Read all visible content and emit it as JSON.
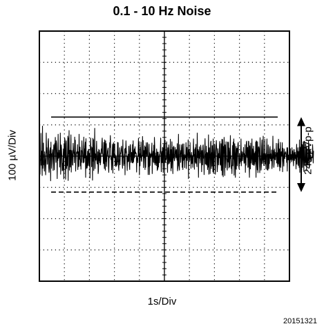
{
  "chart_data": {
    "type": "line",
    "title": "0.1 - 10 Hz Noise",
    "xlabel": "1s/Div",
    "ylabel": "100 µV/Div",
    "x_divisions": 10,
    "y_divisions": 8,
    "grid": true,
    "xlim": [
      0,
      10
    ],
    "ylim": [
      -4,
      4
    ],
    "series": [
      {
        "x_step": 0.0125,
        "values": [
          0.03,
          0.14,
          -0.58,
          -0.13,
          -0.13,
          0.73,
          -0.29,
          0.16,
          -0.3,
          -0.62,
          0.96,
          -0.39,
          0.16,
          0.42,
          -0.28,
          -0.24,
          -0.48,
          0.14,
          -0.06,
          -0.2,
          -0.6,
          -0.27,
          0.74,
          0.11,
          0.27,
          -0.26,
          -0.26,
          0.0,
          0.47,
          0.56,
          -0.36,
          -0.52,
          -0.39,
          0.15,
          0.21,
          0.27,
          -0.79,
          0.45,
          -0.39,
          -0.21,
          0.08,
          0.09,
          0.21,
          -0.16,
          -0.46,
          0.05,
          0.36,
          0.14,
          -0.44,
          0.4,
          0.22,
          0.6,
          0.02,
          -0.2,
          0.49,
          0.4,
          0.16,
          -0.72,
          0.11,
          -0.14,
          0.7,
          -0.07,
          -0.0,
          0.06,
          0.19,
          -0.35,
          0.11,
          0.74,
          -0.58,
          -0.05,
          0.36,
          0.2,
          -0.07,
          -0.47,
          -0.23,
          -0.45,
          0.03,
          0.23,
          -0.73,
          0.4,
          0.01,
          0.58,
          0.51,
          -0.39,
          -0.74,
          0.39,
          0.49,
          -0.4,
          -0.04,
          -0.31,
          0.07,
          0.64,
          -0.78,
          0.58,
          0.08,
          0.82,
          -0.45,
          -0.08,
          0.19,
          -0.35,
          0.25,
          0.68,
          -0.51,
          0.16,
          0.18,
          0.04,
          -0.28,
          -0.29,
          0.41,
          0.22,
          0.11,
          0.05,
          -0.21,
          0.61,
          0.06,
          0.51,
          -0.48,
          -0.18,
          0.05,
          0.13,
          0.14,
          0.09,
          0.37,
          -0.43,
          0.14,
          -0.17,
          -0.34,
          0.7,
          0.08,
          -0.11,
          0.29,
          -0.31,
          -0.13,
          -0.42,
          0.18,
          -0.2,
          0.49,
          0.22,
          0.14,
          -0.06,
          -0.22,
          -0.08,
          0.61,
          -0.2,
          0.23,
          -0.06,
          0.31,
          0.45,
          -0.68,
          0.56,
          -0.4,
          0.01,
          -0.33,
          -0.38,
          0.16,
          -0.31,
          -0.22,
          0.22,
          0.21,
          -0.29,
          -0.32,
          0.09,
          -0.7,
          0.21,
          0.58,
          0.2,
          0.3,
          -0.34,
          -0.13,
          0.27,
          -0.77,
          0.57,
          -0.16,
          0.53,
          -0.46,
          0.03,
          0.1,
          0.89,
          -0.4,
          0.08,
          -0.04,
          -0.13,
          0.13,
          0.48,
          -0.16,
          -0.25,
          -0.15,
          0.14,
          -0.56,
          -0.48,
          0.22,
          -0.15,
          0.19,
          -0.21,
          0.1,
          -0.28,
          -0.18,
          0.04,
          0.23,
          0.08,
          0.43,
          0.58,
          0.12,
          0.03,
          -0.02,
          -0.24,
          0.44,
          -0.07,
          -0.4,
          0.52,
          0.1,
          -0.45,
          0.49,
          -0.17,
          0.4,
          -0.33,
          -0.01,
          0.01,
          0.16,
          0.21,
          0.26,
          -0.34,
          -0.52,
          -0.01,
          -0.04,
          0.43,
          0.28,
          0.66,
          0.26,
          -0.11,
          -0.03,
          -0.44,
          -0.26,
          0.05,
          0.38,
          -0.54,
          0.1,
          0.43,
          -0.04,
          0.39,
          0.28,
          0.39,
          -0.28,
          0.04,
          -0.33,
          -0.03,
          -0.03,
          -0.32,
          -0.17,
          -0.27,
          0.44,
          -0.18,
          0.43,
          -0.31,
          -0.46,
          -0.19,
          -0.07,
          0.27,
          -0.28,
          0.1,
          0.07,
          0.15,
          0.24,
          0.32,
          0.14,
          -0.23,
          -0.39,
          0.52,
          -0.04,
          -0.0,
          -0.3,
          -0.17,
          -0.23,
          0.23,
          -0.6,
          0.25,
          0.1,
          0.49,
          0.19,
          0.11,
          -0.17,
          -0.46,
          -0.02,
          -0.18,
          0.06,
          -0.17,
          0.32,
          0.09,
          -0.32,
          -0.43,
          0.31,
          0.37,
          0.23,
          -0.2,
          0.01,
          0.12,
          -0.12,
          -0.21,
          0.37,
          -0.22,
          0.49,
          -0.19,
          -0.09,
          0.16,
          0.23,
          -0.02,
          0.3,
          0.08,
          0.13,
          0.09,
          0.09,
          -0.51,
          -0.03,
          -0.08,
          -0.09,
          -0.21,
          0.17,
          0.57,
          -0.01,
          0.43,
          -0.6,
          0.06,
          -0.31,
          0.28,
          -0.04,
          0.45,
          -0.12,
          -0.17,
          0.02,
          0.03,
          0.63,
          0.0,
          0.5,
          -0.37,
          -0.16,
          0.18,
          -0.04,
          0.33,
          -0.43,
          0.29,
          -0.36,
          0.18,
          0.43,
          0.1,
          -0.01,
          0.06,
          0.43,
          0.25,
          -0.59,
          -0.02,
          -0.33,
          0.38,
          -0.59,
          0.11,
          -0.3,
          0.01,
          0.07,
          -0.04,
          0.03,
          0.2,
          0.42,
          -0.56,
          -0.02,
          0.08,
          0.16,
          -0.19,
          0.35,
          -0.22,
          0.6,
          0.32,
          -0.28,
          0.1,
          -0.22,
          -0.01,
          -0.3,
          0.23,
          0.1,
          -0.46,
          0.13,
          -0.42,
          0.13,
          -0.35,
          -0.1,
          0.01,
          -0.21,
          0.05,
          0.13,
          0.19,
          0.58,
          -0.04,
          -0.5,
          0.08,
          0.15,
          -0.21,
          0.28,
          0.24,
          -0.52,
          0.21,
          0.37,
          0.14,
          -0.46,
          0.1,
          0.51,
          -0.2,
          -0.05,
          -0.12,
          -0.07,
          0.46,
          0.22,
          -0.22,
          -0.52,
          0.27,
          -0.26,
          -0.23,
          0.36,
          0.18,
          -0.23,
          -0.04,
          -0.17,
          0.54,
          0.0,
          -0.47,
          0.21,
          -0.38,
          0.46,
          0.18,
          -0.26,
          -0.56,
          0.28,
          -0.05,
          0.32,
          -0.08,
          -0.15,
          -0.09,
          0.28,
          0.18,
          0.08,
          -0.06,
          0.21,
          0.17,
          -0.13,
          0.4,
          -0.47,
          -0.39,
          0.06,
          0.7,
          -0.3,
          -0.34,
          -0.45,
          0.37,
          0.06,
          0.18,
          -0.2,
          -0.03,
          0.14,
          0.36,
          0.14,
          -0.36,
          0.39,
          -0.43,
          0.03,
          -0.14,
          0.39,
          -0.1,
          0.05,
          -0.37,
          0.02,
          0.02,
          -0.05,
          0.43,
          -0.4,
          0.02,
          0.28,
          -0.14,
          0.07,
          0.08,
          0.52,
          -0.72,
          0.21,
          0.03,
          0.11,
          -0.14,
          0.43,
          -0.03,
          0.02,
          -0.39,
          0.04,
          0.12,
          -0.24,
          0.02,
          -0.02,
          -0.36,
          0.15,
          0.55,
          -0.0,
          0.04,
          -0.42,
          0.22,
          -0.19,
          0.27,
          -0.23,
          0.38,
          -0.22,
          -0.17,
          -0.34,
          0.74,
          -0.05,
          0.08,
          0.21,
          -0.68,
          0.16,
          -0.07,
          0.3,
          0.06,
          -0.22,
          -0.09,
          0.35,
          0.26,
          0.03,
          -0.5,
          0.18,
          -0.24,
          -0.28,
          0.32,
          0.36,
          -0.07,
          -0.04,
          -0.59,
          0.13,
          0.24,
          0.56,
          -0.25,
          0.07,
          -0.26,
          0.32,
          -0.29,
          0.02,
          0.12,
          -0.43,
          0.09,
          -0.35,
          0.68,
          -0.58,
          0.18,
          0.27,
          0.06,
          -0.56,
          -0.23,
          0.43,
          0.48,
          -0.4,
          0.11,
          -0.32,
          0.34,
          0.23,
          -0.5,
          0.55,
          -0.55,
          -0.44,
          0.13,
          0.39,
          0.36,
          -0.31,
          -0.58,
          0.12,
          0.27,
          0.5,
          0.29,
          0.04,
          -0.5,
          -0.32,
          0.24,
          0.03,
          -0.28,
          0.08,
          -0.05,
          0.35,
          0.47,
          -0.25,
          -0.29,
          -0.15,
          0.4,
          -0.46,
          0.08,
          0.54,
          -0.61,
          0.53,
          0.13,
          -0.66,
          0.31,
          0.09,
          0.6,
          -0.22,
          -0.62,
          0.36,
          -0.37,
          -0.04,
          0.46,
          -0.07,
          -0.12,
          -0.35,
          -0.45,
          0.45,
          0.33,
          -0.19,
          0.45,
          -0.38,
          0.26,
          0.08,
          -0.35,
          -0.07,
          0.66,
          -0.07,
          0.01,
          -0.4,
          -0.3,
          -0.56,
          -0.15,
          0.34,
          -0.31,
          0.45,
          -0.09,
          0.55,
          -0.61,
          0.17,
          0.4,
          -0.11,
          -0.68,
          0.06,
          0.31,
          -0.42,
          0.21,
          0.25,
          -0.31,
          0.12,
          0.39,
          0.44,
          0.03,
          -0.32,
          -0.41,
          0.08,
          -0.24,
          -0.09,
          -0.18,
          0.08,
          0.55,
          -0.31,
          0.15,
          0.05,
          -0.15,
          -0.07,
          0.13,
          0.06,
          0.28,
          -0.14,
          -0.23,
          0.08,
          -0.2,
          0.37,
          -0.52,
          0.03,
          -0.29,
          0.42,
          0.48,
          0.03,
          -0.05,
          0.28,
          -0.36,
          -0.35,
          0.48,
          0.46,
          -0.28,
          -0.68,
          0.33,
          0.18,
          -0.41,
          0.42,
          -0.22,
          -0.11,
          -0.04,
          0.55,
          -0.27,
          0.23,
          0.02,
          -0.28,
          0.32,
          0.01,
          -0.3,
          0.09,
          -0.26,
          0.14,
          -0.18,
          0.45,
          -0.68,
          0.49,
          0.47,
          -0.25,
          -0.44,
          0.46,
          -0.53,
          -0.08,
          0.29,
          0.3,
          0.24,
          -0.32,
          -0.53,
          0.59,
          0.04,
          -0.13,
          -0.45,
          -0.31,
          0.32,
          0.52,
          -0.24,
          -0.14,
          -0.08,
          0.64,
          -0.15,
          -0.3,
          0.08,
          -0.11,
          0.54,
          -0.26,
          0.08,
          0.0,
          -0.41,
          -0.03,
          0.21,
          0.55,
          -0.44,
          0.05,
          -0.45,
          0.36,
          0.26,
          -0.4,
          0.05,
          -0.24,
          0.21,
          0.31,
          -0.08,
          0.07,
          -0.15,
          -0.07,
          0.2,
          -0.4,
          -0.3,
          0.02,
          0.64,
          -0.07,
          0.18,
          -0.36,
          -0.24,
          0.23,
          -0.1,
          0.12,
          -0.12,
          0.03,
          -0.0,
          0.41,
          -0.22,
          -0.08,
          0.11,
          -0.34,
          0.4,
          -0.25,
          0.54,
          0.04,
          -0.33,
          0.23,
          -0.47,
          0.15,
          0.44,
          -0.36,
          -0.06,
          0.14,
          0.0,
          0.01,
          0.43,
          -0.5,
          0.25,
          0.04,
          -0.16,
          -0.32,
          0.23,
          0.05,
          -0.08,
          0.07,
          0.13,
          0.14,
          0.06,
          0.04,
          -0.2,
          0.27,
          -0.48,
          0.27,
          0.05,
          -0.12,
          0.02,
          0.04,
          -0.24,
          0.27,
          0.23,
          -0.22,
          0.24,
          -0.11,
          -0.04,
          0.05,
          -0.18,
          0.27,
          -0.13,
          0.17,
          0.09,
          -0.11,
          -0.31,
          0.21,
          0.21,
          -0.14,
          0.06,
          0.12,
          -0.08,
          0.04,
          -0.41,
          0.12,
          0.38,
          -0.26,
          0.15,
          -0.03,
          0.27,
          -0.3,
          0.05,
          0.15,
          -0.36,
          0.52,
          -0.52,
          0.12,
          0.29,
          -0.04,
          -0.14,
          0.16,
          -0.45,
          0.06,
          0.37,
          -0.36,
          0.01,
          0.46,
          -0.07,
          -0.49,
          0.48,
          0.47,
          -0.25,
          -0.22,
          -0.12,
          0.4,
          -0.26,
          0.31,
          -0.47,
          0.18,
          0.24,
          -0.28,
          -0.1,
          -0.25,
          0.49,
          -0.14,
          0.29,
          -0.36,
          0.21,
          0.11,
          -0.07,
          0.03,
          -0.07,
          -0.17,
          -0.03,
          -0.04,
          -0.05,
          0.37,
          0.14,
          -0.22,
          0.17
        ]
      }
    ],
    "reference_lines": [
      {
        "y": 1.25,
        "style": "solid"
      },
      {
        "y": -1.15,
        "style": "dashed"
      }
    ],
    "annotation": "240 µVp-p"
  },
  "figure_id": "20151321"
}
